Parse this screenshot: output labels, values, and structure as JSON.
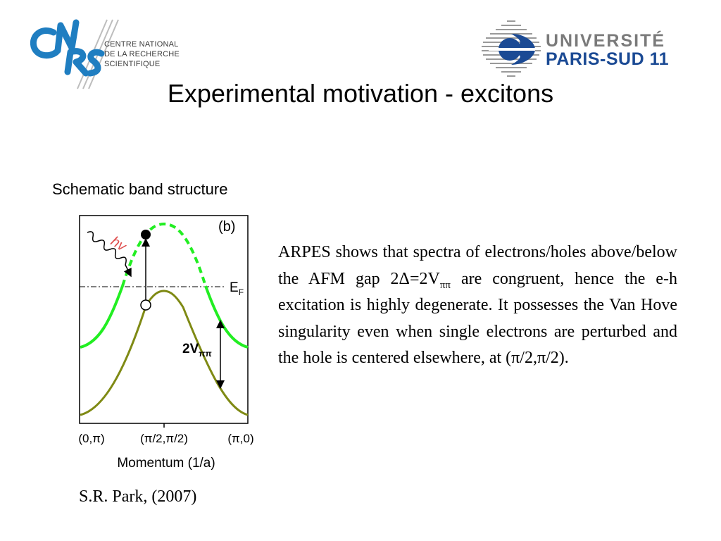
{
  "header": {
    "left_logo": {
      "icon": "cnrs-logo-icon",
      "brand_color": "#1f7ec1",
      "text_lines": [
        "CENTRE NATIONAL",
        "DE LA RECHERCHE",
        "SCIENTIFIQUE"
      ]
    },
    "right_logo": {
      "icon": "university-emblem-icon",
      "line1": "UNIVERSITÉ",
      "line2": "PARIS-SUD 11",
      "colors": {
        "grey": "#7a7a7a",
        "blue": "#1b4a94"
      }
    }
  },
  "slide": {
    "title": "Experimental motivation - excitons",
    "figure_caption": "Schematic band structure",
    "body_parts": {
      "p1": "ARPES shows that spectra of electrons/holes above/below the AFM gap 2Δ=2V",
      "sub": "ππ",
      "p2": "  are congruent, hence the e-h excitation is highly degenerate. It possesses the Van Hove singularity even when single electrons are perturbed and the hole is centered elsewhere, at (π/2,π/2)."
    },
    "citation": "S.R. Park, (2007)"
  },
  "figure": {
    "panel_label": "(b)",
    "photon_label": "hv",
    "fermi_label_main": "E",
    "fermi_label_sub": "F",
    "gap_label_main": "2V",
    "gap_label_sub": "ππ",
    "x_tick_labels": [
      "(0,π)",
      "(π/2,π/2)",
      "(π,0)"
    ],
    "x_axis_label": "Momentum (1/a)",
    "colors": {
      "upper_band": "#22ee22",
      "lower_band": "#7f8a14",
      "photon": "#e05050"
    }
  }
}
